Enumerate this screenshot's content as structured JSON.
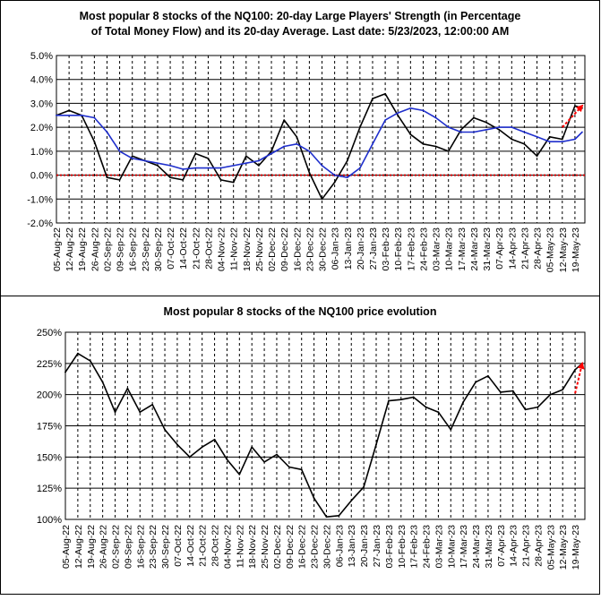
{
  "chart_data": [
    {
      "type": "line",
      "title_line1": "Most popular 8 stocks of the NQ100: 20-day Large Players' Strength (in Percentage",
      "title_line2": "of Total Money Flow) and its 20-day Average. Last date: 5/23/2023, 12:00:00 AM",
      "ylim": [
        -2.0,
        5.0
      ],
      "yticks": [
        -2.0,
        -1.0,
        0.0,
        1.0,
        2.0,
        3.0,
        4.0,
        5.0
      ],
      "ytick_labels": [
        "-2.0%",
        "-1.0%",
        "0.0%",
        "1.0%",
        "2.0%",
        "3.0%",
        "4.0%",
        "5.0%"
      ],
      "zero_line": {
        "value": 0.0,
        "color": "#cc0000",
        "style": "dotted"
      },
      "grid": true,
      "series": [
        {
          "key": "strength",
          "color": "#000000",
          "x": [
            "2022-08-05",
            "2022-08-12",
            "2022-08-19",
            "2022-08-26",
            "2022-09-02",
            "2022-09-09",
            "2022-09-16",
            "2022-09-23",
            "2022-09-30",
            "2022-10-07",
            "2022-10-14",
            "2022-10-21",
            "2022-10-28",
            "2022-11-04",
            "2022-11-11",
            "2022-11-18",
            "2022-11-25",
            "2022-12-02",
            "2022-12-09",
            "2022-12-16",
            "2022-12-23",
            "2022-12-30",
            "2023-01-06",
            "2023-01-13",
            "2023-01-20",
            "2023-01-27",
            "2023-02-03",
            "2023-02-10",
            "2023-02-17",
            "2023-02-24",
            "2023-03-03",
            "2023-03-10",
            "2023-03-17",
            "2023-03-24",
            "2023-03-31",
            "2023-04-07",
            "2023-04-14",
            "2023-04-21",
            "2023-04-28",
            "2023-05-05",
            "2023-05-12",
            "2023-05-19",
            "2023-05-23"
          ],
          "values": [
            2.5,
            2.7,
            2.5,
            1.4,
            -0.1,
            -0.2,
            0.8,
            0.6,
            0.4,
            -0.1,
            -0.2,
            0.9,
            0.7,
            -0.2,
            -0.3,
            0.8,
            0.4,
            1.0,
            2.3,
            1.6,
            0.1,
            -1.0,
            -0.3,
            0.6,
            2.0,
            3.2,
            3.4,
            2.5,
            1.7,
            1.3,
            1.2,
            1.0,
            1.9,
            2.4,
            2.2,
            1.9,
            1.5,
            1.3,
            0.8,
            1.6,
            1.5,
            2.9,
            2.8
          ]
        },
        {
          "key": "average",
          "color": "#1f2fcc",
          "x": [
            "2022-08-05",
            "2022-08-12",
            "2022-08-19",
            "2022-08-26",
            "2022-09-02",
            "2022-09-09",
            "2022-09-16",
            "2022-09-23",
            "2022-09-30",
            "2022-10-07",
            "2022-10-14",
            "2022-10-21",
            "2022-10-28",
            "2022-11-04",
            "2022-11-11",
            "2022-11-18",
            "2022-11-25",
            "2022-12-02",
            "2022-12-09",
            "2022-12-16",
            "2022-12-23",
            "2022-12-30",
            "2023-01-06",
            "2023-01-13",
            "2023-01-20",
            "2023-01-27",
            "2023-02-03",
            "2023-02-10",
            "2023-02-17",
            "2023-02-24",
            "2023-03-03",
            "2023-03-10",
            "2023-03-17",
            "2023-03-24",
            "2023-03-31",
            "2023-04-07",
            "2023-04-14",
            "2023-04-21",
            "2023-04-28",
            "2023-05-05",
            "2023-05-12",
            "2023-05-19",
            "2023-05-23"
          ],
          "values": [
            2.5,
            2.5,
            2.5,
            2.4,
            1.8,
            1.0,
            0.7,
            0.6,
            0.5,
            0.4,
            0.25,
            0.3,
            0.3,
            0.3,
            0.4,
            0.5,
            0.6,
            0.9,
            1.2,
            1.3,
            1.0,
            0.4,
            0.0,
            -0.1,
            0.3,
            1.3,
            2.3,
            2.6,
            2.8,
            2.7,
            2.4,
            2.0,
            1.8,
            1.8,
            1.9,
            2.0,
            2.0,
            1.8,
            1.6,
            1.4,
            1.4,
            1.5,
            1.8
          ]
        }
      ],
      "annotation": {
        "type": "arrow",
        "color": "#ff0000",
        "style": "dashed",
        "from": {
          "x": "2023-05-12",
          "y": 2.0
        },
        "to": {
          "x": "2023-05-23",
          "y": 2.9
        }
      },
      "xtick_labels": [
        "05-Aug-22",
        "12-Aug-22",
        "19-Aug-22",
        "26-Aug-22",
        "02-Sep-22",
        "09-Sep-22",
        "16-Sep-22",
        "23-Sep-22",
        "30-Sep-22",
        "07-Oct-22",
        "14-Oct-22",
        "21-Oct-22",
        "28-Oct-22",
        "04-Nov-22",
        "11-Nov-22",
        "18-Nov-22",
        "25-Nov-22",
        "02-Dec-22",
        "09-Dec-22",
        "16-Dec-22",
        "23-Dec-22",
        "30-Dec-22",
        "06-Jan-23",
        "13-Jan-23",
        "20-Jan-23",
        "27-Jan-23",
        "03-Feb-23",
        "10-Feb-23",
        "17-Feb-23",
        "24-Feb-23",
        "03-Mar-23",
        "10-Mar-23",
        "17-Mar-23",
        "24-Mar-23",
        "31-Mar-23",
        "07-Apr-23",
        "14-Apr-23",
        "21-Apr-23",
        "28-Apr-23",
        "05-May-23",
        "12-May-23",
        "19-May-23"
      ]
    },
    {
      "type": "line",
      "title": "Most popular 8 stocks of the NQ100 price evolution",
      "ylim": [
        100,
        250
      ],
      "yticks": [
        100,
        125,
        150,
        175,
        200,
        225,
        250
      ],
      "ytick_labels": [
        "100%",
        "125%",
        "150%",
        "175%",
        "200%",
        "225%",
        "250%"
      ],
      "grid": true,
      "series": [
        {
          "key": "price",
          "color": "#000000",
          "x": [
            "2022-08-05",
            "2022-08-12",
            "2022-08-19",
            "2022-08-26",
            "2022-09-02",
            "2022-09-09",
            "2022-09-16",
            "2022-09-23",
            "2022-09-30",
            "2022-10-07",
            "2022-10-14",
            "2022-10-21",
            "2022-10-28",
            "2022-11-04",
            "2022-11-11",
            "2022-11-18",
            "2022-11-25",
            "2022-12-02",
            "2022-12-09",
            "2022-12-16",
            "2022-12-23",
            "2022-12-30",
            "2023-01-06",
            "2023-01-13",
            "2023-01-20",
            "2023-01-27",
            "2023-02-03",
            "2023-02-10",
            "2023-02-17",
            "2023-02-24",
            "2023-03-03",
            "2023-03-10",
            "2023-03-17",
            "2023-03-24",
            "2023-03-31",
            "2023-04-07",
            "2023-04-14",
            "2023-04-21",
            "2023-04-28",
            "2023-05-05",
            "2023-05-12",
            "2023-05-19",
            "2023-05-23"
          ],
          "values": [
            218,
            233,
            227,
            210,
            186,
            205,
            186,
            192,
            172,
            160,
            150,
            158,
            164,
            148,
            136,
            158,
            146,
            152,
            142,
            140,
            117,
            102,
            103,
            115,
            126,
            160,
            195,
            196,
            198,
            190,
            186,
            172,
            194,
            210,
            215,
            202,
            203,
            188,
            190,
            200,
            204,
            220,
            225
          ]
        }
      ],
      "annotation": {
        "type": "arrow",
        "color": "#ff0000",
        "style": "dashed",
        "from": {
          "x": "2023-05-19",
          "y": 201
        },
        "to": {
          "x": "2023-05-23",
          "y": 225
        }
      },
      "xtick_labels": [
        "05-Aug-22",
        "12-Aug-22",
        "19-Aug-22",
        "26-Aug-22",
        "02-Sep-22",
        "09-Sep-22",
        "16-Sep-22",
        "23-Sep-22",
        "30-Sep-22",
        "07-Oct-22",
        "14-Oct-22",
        "21-Oct-22",
        "28-Oct-22",
        "04-Nov-22",
        "11-Nov-22",
        "18-Nov-22",
        "25-Nov-22",
        "02-Dec-22",
        "09-Dec-22",
        "16-Dec-22",
        "23-Dec-22",
        "30-Dec-22",
        "06-Jan-23",
        "13-Jan-23",
        "20-Jan-23",
        "27-Jan-23",
        "03-Feb-23",
        "10-Feb-23",
        "17-Feb-23",
        "24-Feb-23",
        "03-Mar-23",
        "10-Mar-23",
        "17-Mar-23",
        "24-Mar-23",
        "31-Mar-23",
        "07-Apr-23",
        "14-Apr-23",
        "21-Apr-23",
        "28-Apr-23",
        "05-May-23",
        "12-May-23",
        "19-May-23"
      ]
    }
  ]
}
